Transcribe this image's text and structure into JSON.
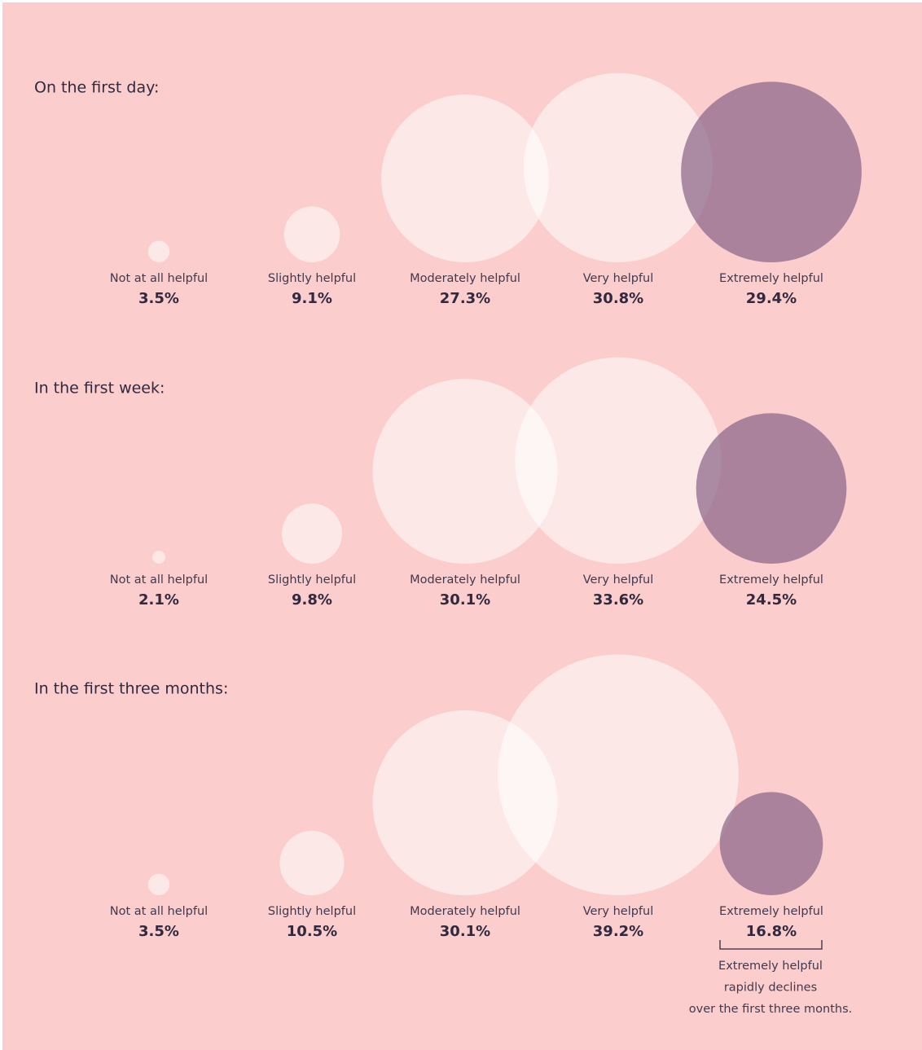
{
  "chart_data": [
    {
      "type": "bubble",
      "title": "On the first day:",
      "categories": [
        "Not at all helpful",
        "Slightly helpful",
        "Moderately helpful",
        "Very helpful",
        "Extremely helpful"
      ],
      "values": [
        3.5,
        9.1,
        27.3,
        30.8,
        29.4
      ],
      "value_labels": [
        "3.5%",
        "9.1%",
        "27.3%",
        "30.8%",
        "29.4%"
      ],
      "colors": [
        "#ffffff",
        "#ffffff",
        "#ffffff",
        "#ffffff",
        "#8a6588"
      ]
    },
    {
      "type": "bubble",
      "title": "In the first week:",
      "categories": [
        "Not at all helpful",
        "Slightly helpful",
        "Moderately helpful",
        "Very helpful",
        "Extremely helpful"
      ],
      "values": [
        2.1,
        9.8,
        30.1,
        33.6,
        24.5
      ],
      "value_labels": [
        "2.1%",
        "9.8%",
        "30.1%",
        "33.6%",
        "24.5%"
      ],
      "colors": [
        "#ffffff",
        "#ffffff",
        "#ffffff",
        "#ffffff",
        "#8a6588"
      ]
    },
    {
      "type": "bubble",
      "title": "In the first three months:",
      "categories": [
        "Not at all helpful",
        "Slightly helpful",
        "Moderately helpful",
        "Very helpful",
        "Extremely helpful"
      ],
      "values": [
        3.5,
        10.5,
        30.1,
        39.2,
        16.8
      ],
      "value_labels": [
        "3.5%",
        "10.5%",
        "30.1%",
        "39.2%",
        "16.8%"
      ],
      "colors": [
        "#ffffff",
        "#ffffff",
        "#ffffff",
        "#ffffff",
        "#8a6588"
      ],
      "annotation": [
        "Extremely helpful",
        "rapidly declines",
        "over the first three months."
      ]
    }
  ]
}
